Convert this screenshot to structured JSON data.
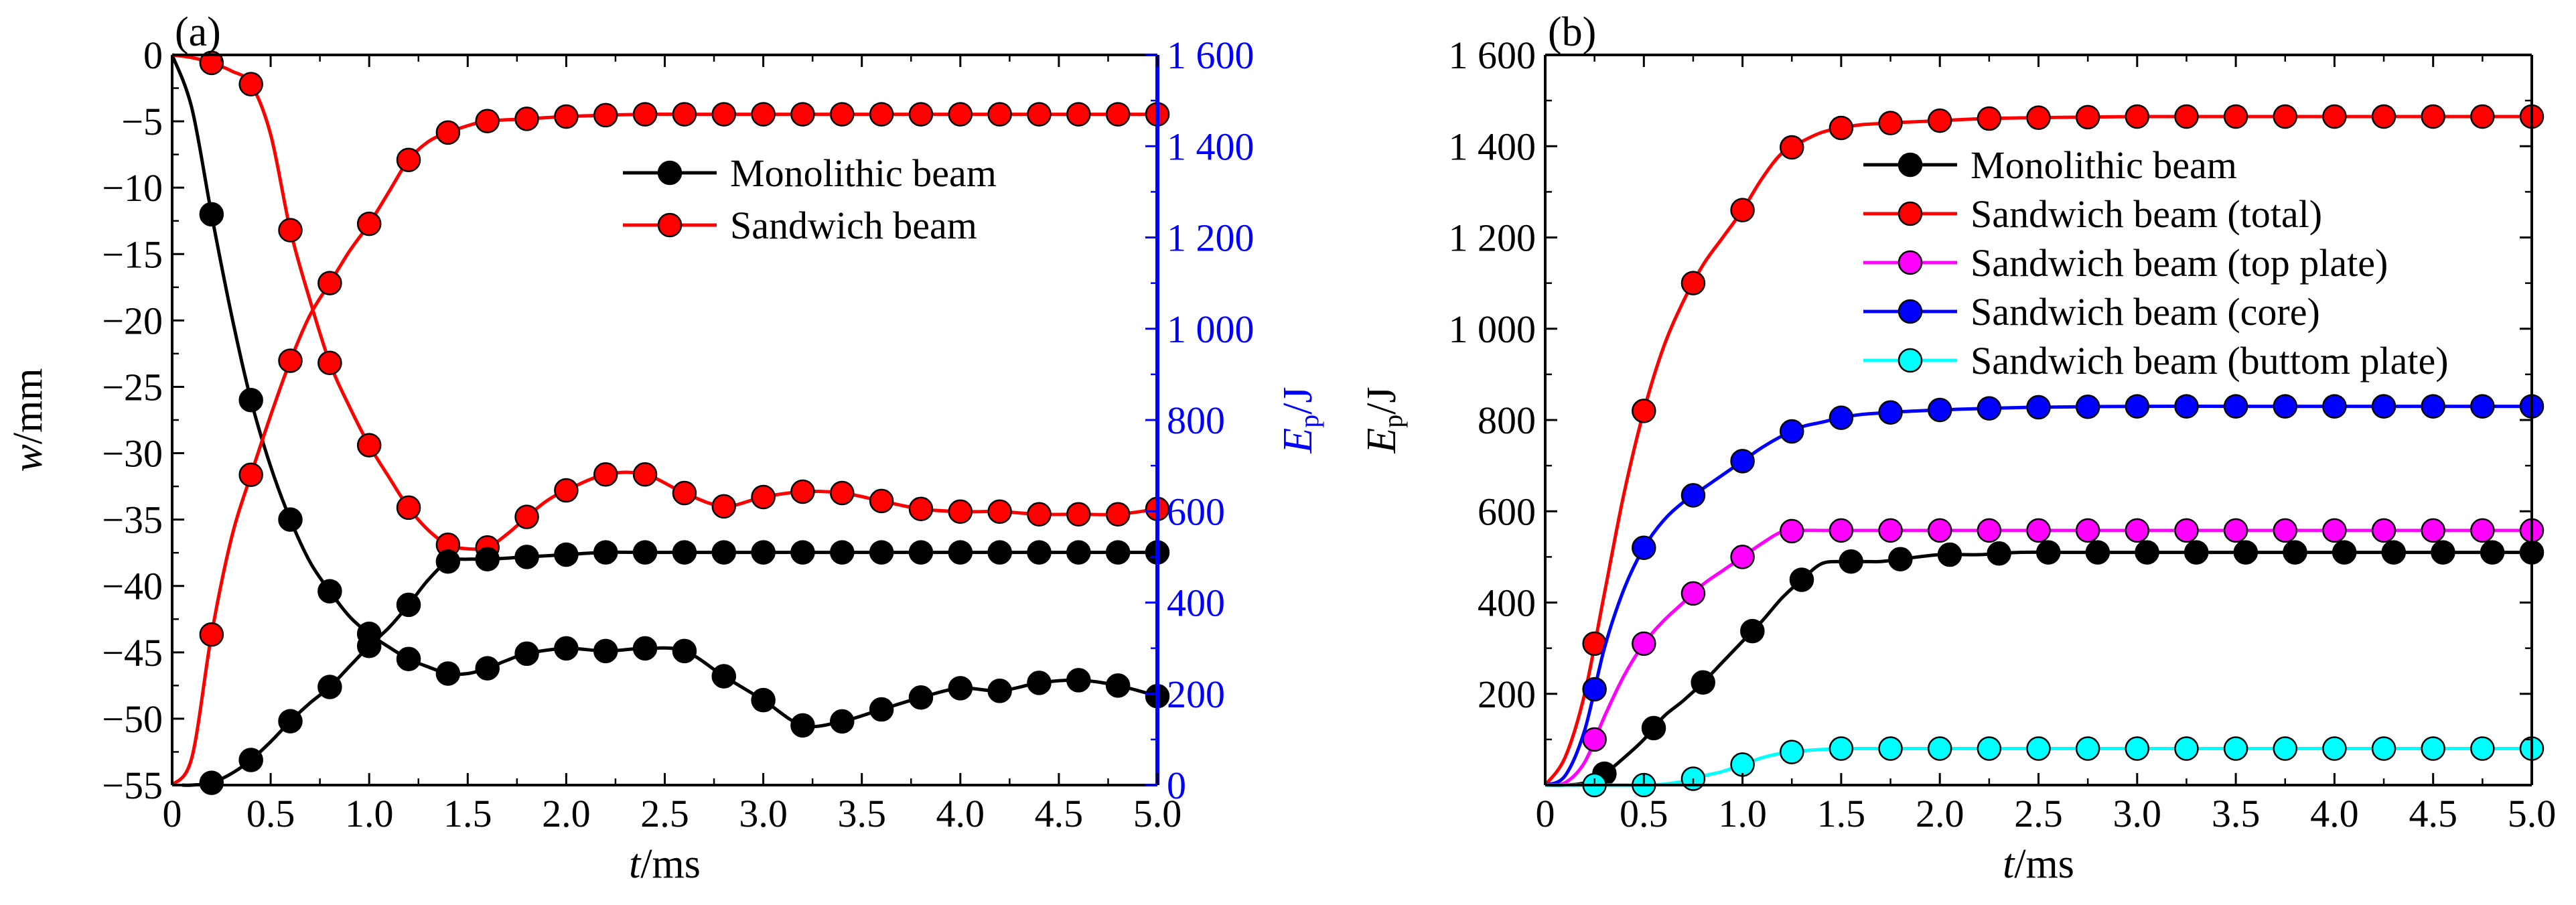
{
  "colors": {
    "black": "#000000",
    "red": "#ff0000",
    "magenta": "#ff00ff",
    "blue": "#0000ff",
    "cyan": "#00ffff",
    "axis_right_a": "#0000ff"
  },
  "chart_data": [
    {
      "type": "line",
      "panel_label": "(a)",
      "xlabel": "t/ms",
      "ylabel": "w/mm",
      "ylabel_right": "Ep/J",
      "xlim": [
        0,
        5.0
      ],
      "ylim": [
        -55,
        0
      ],
      "ylim_right": [
        0,
        1600
      ],
      "x_ticks": [
        "0",
        "0.5",
        "1.0",
        "1.5",
        "2.0",
        "2.5",
        "3.0",
        "3.5",
        "4.0",
        "4.5",
        "5.0"
      ],
      "y_ticks": [
        "0",
        "−5",
        "−10",
        "−15",
        "−20",
        "−25",
        "−30",
        "−35",
        "−40",
        "−45",
        "−50",
        "−55"
      ],
      "y_ticks_right": [
        "0",
        "200",
        "400",
        "600",
        "800",
        "1 000",
        "1 200",
        "1 400",
        "1 600"
      ],
      "legend": [
        "Monolithic beam",
        "Sandwich beam"
      ],
      "legend_position": "top-right",
      "series": [
        {
          "name": "Monolithic beam",
          "axis": "left",
          "color": "#000000",
          "x": [
            0,
            0.1,
            0.2,
            0.3,
            0.4,
            0.5,
            0.6,
            0.7,
            0.8,
            0.9,
            1.0,
            1.1,
            1.2,
            1.3,
            1.4,
            1.5,
            1.6,
            1.7,
            1.8,
            2.0,
            2.2,
            2.4,
            2.6,
            2.8,
            3.0,
            3.2,
            3.4,
            3.6,
            3.8,
            4.0,
            4.2,
            4.4,
            4.6,
            4.8,
            5.0
          ],
          "y": [
            0,
            -4,
            -12,
            -19.5,
            -26,
            -31,
            -35,
            -38.2,
            -40.4,
            -42.3,
            -43.6,
            -44.6,
            -45.5,
            -46.1,
            -46.6,
            -46.6,
            -46.2,
            -45.6,
            -45.1,
            -44.7,
            -44.9,
            -44.7,
            -44.9,
            -46.8,
            -48.6,
            -50.5,
            -50.2,
            -49.3,
            -48.4,
            -47.7,
            -47.9,
            -47.3,
            -47.1,
            -47.5,
            -48.3
          ],
          "markers_x": [
            0.2,
            0.4,
            0.6,
            0.8,
            1.0,
            1.2,
            1.4,
            1.6,
            1.8,
            2.0,
            2.2,
            2.4,
            2.6,
            2.8,
            3.0,
            3.2,
            3.4,
            3.6,
            3.8,
            4.0,
            4.2,
            4.4,
            4.6,
            4.8,
            5.0
          ]
        },
        {
          "name": "Sandwich beam",
          "axis": "left",
          "color": "#ff0000",
          "x": [
            0,
            0.1,
            0.2,
            0.3,
            0.4,
            0.5,
            0.6,
            0.7,
            0.8,
            0.9,
            1.0,
            1.1,
            1.2,
            1.3,
            1.4,
            1.5,
            1.6,
            1.7,
            1.8,
            1.9,
            2.0,
            2.2,
            2.4,
            2.6,
            2.8,
            3.0,
            3.2,
            3.4,
            3.6,
            3.8,
            4.0,
            4.2,
            4.4,
            4.6,
            4.8,
            5.0
          ],
          "y": [
            0,
            -0.2,
            -0.6,
            -1.2,
            -2.2,
            -6,
            -13.2,
            -18.5,
            -23.2,
            -26.5,
            -29.4,
            -31.8,
            -34.1,
            -35.8,
            -36.9,
            -37.2,
            -37.1,
            -36.1,
            -34.8,
            -33.6,
            -32.8,
            -31.6,
            -31.6,
            -33.0,
            -34.0,
            -33.3,
            -32.9,
            -33.0,
            -33.6,
            -34.2,
            -34.4,
            -34.4,
            -34.6,
            -34.6,
            -34.6,
            -34.2
          ],
          "markers_x": [
            0.2,
            0.4,
            0.6,
            0.8,
            1.0,
            1.2,
            1.4,
            1.6,
            1.8,
            2.0,
            2.2,
            2.4,
            2.6,
            2.8,
            3.0,
            3.2,
            3.4,
            3.6,
            3.8,
            4.0,
            4.2,
            4.4,
            4.6,
            4.8,
            5.0
          ]
        },
        {
          "name": "Monolithic beam",
          "axis": "right",
          "color": "#000000",
          "x": [
            0.05,
            0.1,
            0.2,
            0.3,
            0.4,
            0.5,
            0.6,
            0.7,
            0.8,
            0.9,
            1.0,
            1.1,
            1.2,
            1.3,
            1.4,
            1.5,
            1.6,
            1.8,
            2.0,
            2.2,
            2.4,
            2.6,
            2.8,
            3.0,
            3.2,
            3.4,
            3.6,
            3.8,
            4.0,
            4.2,
            4.4,
            4.6,
            4.8,
            5.0
          ],
          "y": [
            0,
            0,
            5,
            25,
            55,
            95,
            140,
            180,
            215,
            260,
            305,
            345,
            395,
            450,
            490,
            495,
            495,
            500,
            505,
            510,
            510,
            510,
            510,
            510,
            510,
            510,
            510,
            510,
            510,
            510,
            510,
            510,
            510,
            510
          ],
          "markers_x": [
            0.2,
            0.4,
            0.6,
            0.8,
            1.0,
            1.2,
            1.4,
            1.6,
            1.8,
            2.0,
            2.2,
            2.4,
            2.6,
            2.8,
            3.0,
            3.2,
            3.4,
            3.6,
            3.8,
            4.0,
            4.2,
            4.4,
            4.6,
            4.8,
            5.0
          ]
        },
        {
          "name": "Sandwich beam",
          "axis": "right",
          "color": "#ff0000",
          "x": [
            0,
            0.1,
            0.2,
            0.3,
            0.4,
            0.5,
            0.6,
            0.7,
            0.8,
            0.9,
            1.0,
            1.1,
            1.2,
            1.3,
            1.4,
            1.5,
            1.6,
            1.8,
            2.0,
            2.2,
            2.4,
            2.6,
            2.8,
            3.0,
            3.2,
            3.4,
            3.6,
            3.8,
            4.0,
            4.2,
            4.4,
            4.6,
            4.8,
            5.0
          ],
          "y": [
            0,
            60,
            330,
            540,
            680,
            810,
            930,
            1030,
            1100,
            1170,
            1230,
            1300,
            1370,
            1410,
            1430,
            1445,
            1455,
            1460,
            1465,
            1468,
            1470,
            1470,
            1470,
            1470,
            1470,
            1470,
            1470,
            1470,
            1470,
            1470,
            1470,
            1470,
            1470,
            1470
          ],
          "markers_x": [
            0.2,
            0.4,
            0.6,
            0.8,
            1.0,
            1.2,
            1.4,
            1.6,
            1.8,
            2.0,
            2.2,
            2.4,
            2.6,
            2.8,
            3.0,
            3.2,
            3.4,
            3.6,
            3.8,
            4.0,
            4.2,
            4.4,
            4.6,
            4.8,
            5.0
          ]
        }
      ]
    },
    {
      "type": "line",
      "panel_label": "(b)",
      "xlabel": "t/ms",
      "ylabel": "Ep/J",
      "xlim": [
        0,
        5.0
      ],
      "ylim": [
        0,
        1600
      ],
      "x_ticks": [
        "0",
        "0.5",
        "1.0",
        "1.5",
        "2.0",
        "2.5",
        "3.0",
        "3.5",
        "4.0",
        "4.5",
        "5.0"
      ],
      "y_ticks": [
        "200",
        "400",
        "600",
        "800",
        "1 000",
        "1 200",
        "1 400",
        "1 600"
      ],
      "legend": [
        "Monolithic beam",
        "Sandwich beam (total)",
        "Sandwich beam (top plate)",
        "Sandwich beam  (core)",
        "Sandwich beam  (buttom plate)"
      ],
      "legend_position": "top-right",
      "series": [
        {
          "name": "Monolithic beam",
          "color": "#000000",
          "x": [
            0,
            0.1,
            0.2,
            0.3,
            0.4,
            0.5,
            0.6,
            0.7,
            0.8,
            0.9,
            1.0,
            1.1,
            1.2,
            1.3,
            1.4,
            1.5,
            1.6,
            1.7,
            1.8,
            2.0,
            2.2,
            2.4,
            2.6,
            2.8,
            3.0,
            3.2,
            3.4,
            3.6,
            3.8,
            4.0,
            4.2,
            4.4,
            4.6,
            4.8,
            5.0
          ],
          "y": [
            0,
            0,
            5,
            25,
            60,
            100,
            150,
            185,
            225,
            270,
            315,
            360,
            410,
            450,
            485,
            490,
            490,
            490,
            495,
            505,
            505,
            510,
            510,
            510,
            510,
            510,
            510,
            510,
            510,
            510,
            510,
            510,
            510,
            510,
            510
          ],
          "marker_x": [
            0.3,
            0.55,
            0.8,
            1.05,
            1.3,
            1.55,
            1.8,
            2.05,
            2.3,
            2.55,
            2.8,
            3.05,
            3.3,
            3.55,
            3.8,
            4.05,
            4.3,
            4.55,
            4.8,
            5.0
          ]
        },
        {
          "name": "Sandwich beam (total)",
          "color": "#ff0000",
          "x": [
            0,
            0.1,
            0.2,
            0.3,
            0.4,
            0.5,
            0.6,
            0.7,
            0.8,
            0.9,
            1.0,
            1.1,
            1.2,
            1.3,
            1.4,
            1.5,
            1.6,
            1.8,
            2.0,
            2.2,
            2.4,
            2.6,
            2.8,
            3.0,
            3.2,
            3.4,
            3.6,
            3.8,
            4.0,
            4.2,
            4.4,
            4.6,
            4.8,
            5.0
          ],
          "y": [
            0,
            60,
            200,
            420,
            640,
            820,
            960,
            1060,
            1140,
            1200,
            1260,
            1330,
            1385,
            1410,
            1430,
            1440,
            1447,
            1452,
            1456,
            1460,
            1462,
            1463,
            1464,
            1465,
            1465,
            1465,
            1465,
            1465,
            1465,
            1465,
            1465,
            1465,
            1465,
            1465
          ],
          "marker_x": [
            0.25,
            0.5,
            0.75,
            1.0,
            1.25,
            1.5,
            1.75,
            2.0,
            2.25,
            2.5,
            2.75,
            3.0,
            3.25,
            3.5,
            3.75,
            4.0,
            4.25,
            4.5,
            4.75,
            5.0
          ]
        },
        {
          "name": "Sandwich beam (top plate)",
          "color": "#ff00ff",
          "x": [
            0,
            0.1,
            0.2,
            0.3,
            0.4,
            0.5,
            0.6,
            0.7,
            0.8,
            0.9,
            1.0,
            1.1,
            1.2,
            1.3,
            1.4,
            1.5,
            1.6,
            1.8,
            2.0,
            2.5,
            3.0,
            3.5,
            4.0,
            4.5,
            5.0
          ],
          "y": [
            0,
            5,
            50,
            150,
            240,
            310,
            360,
            400,
            440,
            470,
            500,
            530,
            555,
            558,
            558,
            558,
            558,
            558,
            558,
            558,
            558,
            558,
            558,
            558,
            558
          ],
          "marker_x": [
            0.25,
            0.5,
            0.75,
            1.0,
            1.25,
            1.5,
            1.75,
            2.0,
            2.25,
            2.5,
            2.75,
            3.0,
            3.25,
            3.5,
            3.75,
            4.0,
            4.25,
            4.5,
            4.75,
            5.0
          ]
        },
        {
          "name": "Sandwich beam  (core)",
          "color": "#0000ff",
          "x": [
            0,
            0.1,
            0.2,
            0.3,
            0.4,
            0.5,
            0.6,
            0.7,
            0.8,
            0.9,
            1.0,
            1.1,
            1.2,
            1.3,
            1.4,
            1.5,
            1.6,
            1.8,
            2.0,
            2.2,
            2.5,
            3.0,
            3.5,
            4.0,
            4.5,
            5.0
          ],
          "y": [
            0,
            20,
            120,
            300,
            430,
            520,
            580,
            620,
            650,
            680,
            710,
            740,
            765,
            785,
            795,
            805,
            812,
            818,
            822,
            825,
            828,
            830,
            830,
            830,
            830,
            830
          ],
          "marker_x": [
            0.25,
            0.5,
            0.75,
            1.0,
            1.25,
            1.5,
            1.75,
            2.0,
            2.25,
            2.5,
            2.75,
            3.0,
            3.25,
            3.5,
            3.75,
            4.0,
            4.25,
            4.5,
            4.75,
            5.0
          ]
        },
        {
          "name": "Sandwich beam  (buttom plate)",
          "color": "#00ffff",
          "x": [
            0,
            0.1,
            0.2,
            0.3,
            0.4,
            0.5,
            0.6,
            0.7,
            0.8,
            0.9,
            1.0,
            1.1,
            1.2,
            1.3,
            1.4,
            1.5,
            1.6,
            1.8,
            2.0,
            2.5,
            3.0,
            3.5,
            4.0,
            4.5,
            5.0
          ],
          "y": [
            0,
            0,
            0,
            0,
            0,
            0,
            2,
            8,
            20,
            30,
            45,
            60,
            70,
            75,
            78,
            80,
            80,
            80,
            80,
            80,
            80,
            80,
            80,
            80,
            80
          ],
          "marker_x": [
            0.25,
            0.5,
            0.75,
            1.0,
            1.25,
            1.5,
            1.75,
            2.0,
            2.25,
            2.5,
            2.75,
            3.0,
            3.25,
            3.5,
            3.75,
            4.0,
            4.25,
            4.5,
            4.75,
            5.0
          ]
        }
      ]
    }
  ]
}
